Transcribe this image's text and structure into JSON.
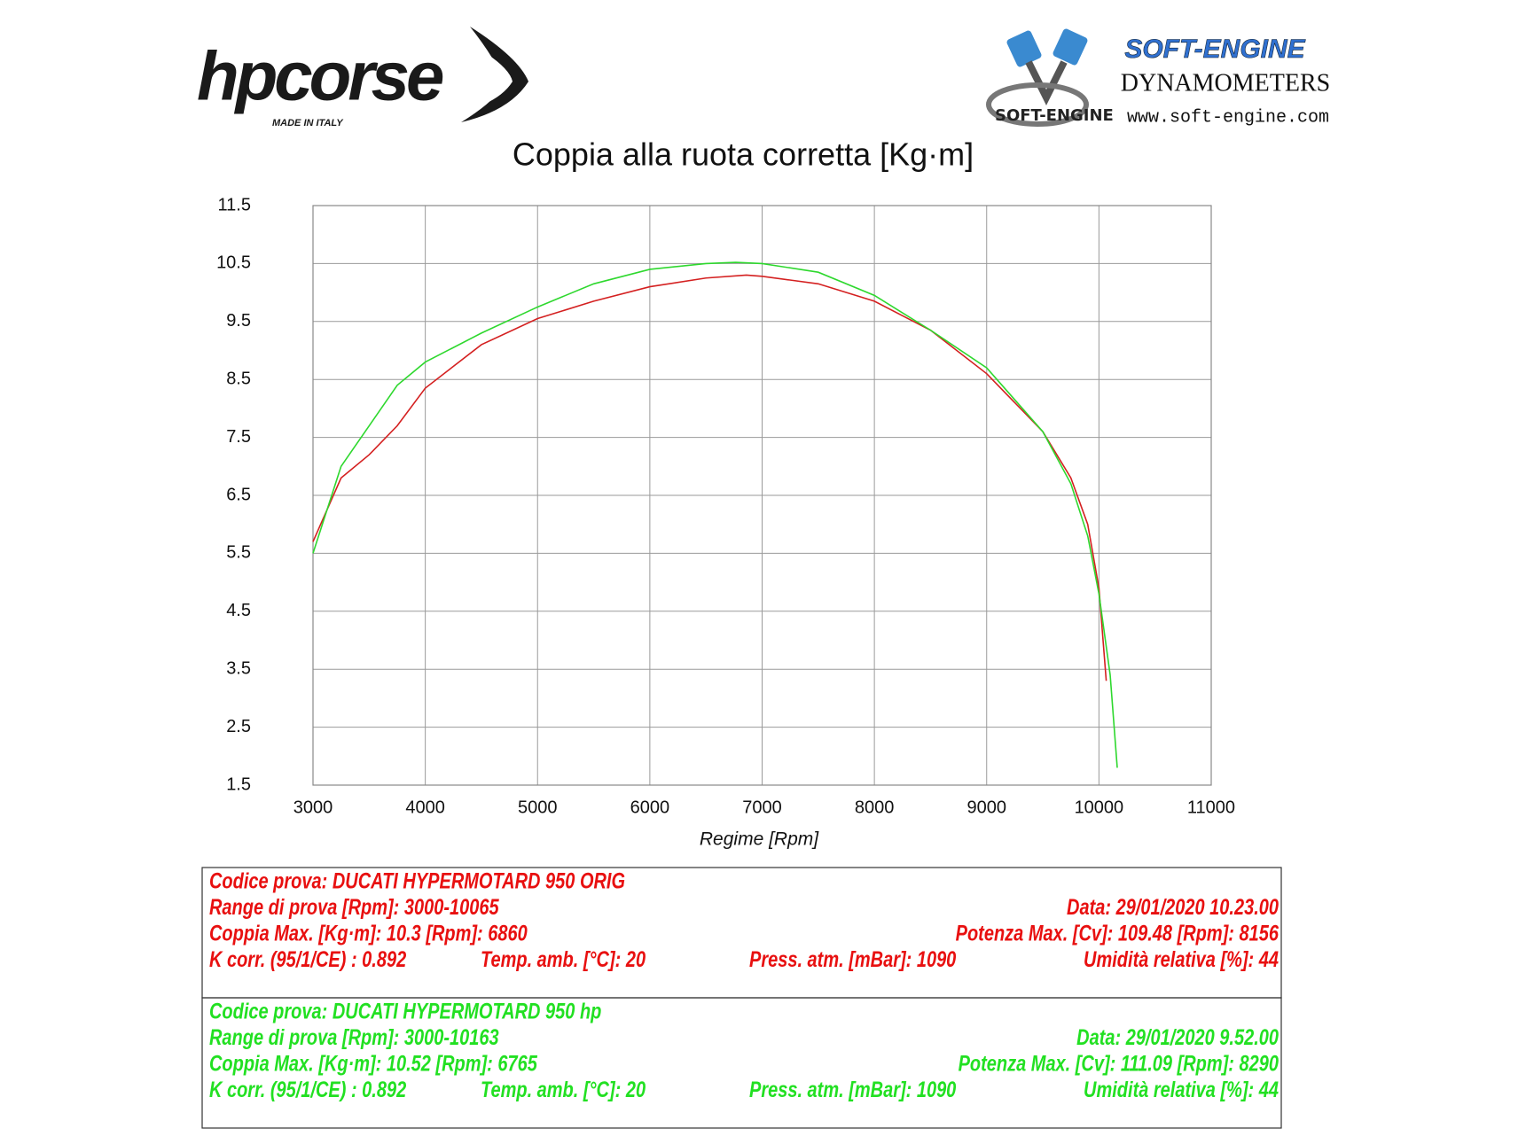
{
  "header": {
    "brand": "hpcorse",
    "brand_tagline": "MADE IN ITALY",
    "partner": "SOFT-ENGINE",
    "partner_sub": "DYNAMOMETERS",
    "partner_url": "www.soft-engine.com",
    "partner_logo_text": "SOFT-ENGINE"
  },
  "chart_data": {
    "type": "line",
    "title": "Coppia alla ruota corretta [Kg·m]",
    "x_label": "Regime [Rpm]",
    "xlim": [
      3000,
      11000
    ],
    "xticks": [
      3000,
      4000,
      5000,
      6000,
      7000,
      8000,
      9000,
      10000,
      11000
    ],
    "ylim": [
      1.5,
      11.5
    ],
    "yticks": [
      1.5,
      2.5,
      3.5,
      4.5,
      5.5,
      6.5,
      7.5,
      8.5,
      9.5,
      10.5,
      11.5
    ],
    "grid": true,
    "series": [
      {
        "color": "#d42020",
        "x": [
          3000,
          3250,
          3500,
          3750,
          4000,
          4500,
          5000,
          5500,
          6000,
          6500,
          6860,
          7000,
          7500,
          8000,
          8500,
          9000,
          9500,
          9750,
          9900,
          10000,
          10065
        ],
        "values": [
          5.7,
          6.8,
          7.2,
          7.7,
          8.35,
          9.1,
          9.55,
          9.85,
          10.1,
          10.25,
          10.3,
          10.28,
          10.15,
          9.85,
          9.35,
          8.6,
          7.6,
          6.8,
          6.0,
          4.9,
          3.3
        ]
      },
      {
        "color": "#2ed82e",
        "x": [
          3000,
          3250,
          3500,
          3750,
          4000,
          4500,
          5000,
          5500,
          6000,
          6500,
          6765,
          7000,
          7500,
          8000,
          8500,
          9000,
          9500,
          9750,
          9900,
          10000,
          10100,
          10163
        ],
        "values": [
          5.5,
          7.0,
          7.7,
          8.4,
          8.8,
          9.3,
          9.75,
          10.15,
          10.4,
          10.5,
          10.52,
          10.5,
          10.35,
          9.95,
          9.35,
          8.7,
          7.6,
          6.7,
          5.8,
          4.8,
          3.4,
          1.8
        ]
      }
    ]
  },
  "panels": [
    {
      "color": "#e81010",
      "rows": [
        [
          "Codice prova: DUCATI HYPERMOTARD 950 ORIG"
        ],
        [
          "Range di prova [Rpm]: 3000-10065",
          "Data: 29/01/2020  10.23.00"
        ],
        [
          "Coppia Max. [Kg·m]: 10.3  [Rpm]: 6860",
          "Potenza Max. [Cv]: 109.48  [Rpm]: 8156"
        ],
        [
          "K corr. (95/1/CE) : 0.892",
          "Temp. amb. [°C]: 20",
          "Press. atm. [mBar]: 1090",
          "Umidità relativa [%]: 44"
        ]
      ]
    },
    {
      "color": "#22e022",
      "rows": [
        [
          "Codice prova: DUCATI HYPERMOTARD 950 hp"
        ],
        [
          "Range di prova [Rpm]: 3000-10163",
          "Data: 29/01/2020  9.52.00"
        ],
        [
          "Coppia Max. [Kg·m]: 10.52  [Rpm]: 6765",
          "Potenza Max. [Cv]: 111.09  [Rpm]: 8290"
        ],
        [
          "K corr. (95/1/CE) : 0.892",
          "Temp. amb. [°C]: 20",
          "Press. atm. [mBar]: 1090",
          "Umidità relativa [%]: 44"
        ]
      ]
    }
  ]
}
